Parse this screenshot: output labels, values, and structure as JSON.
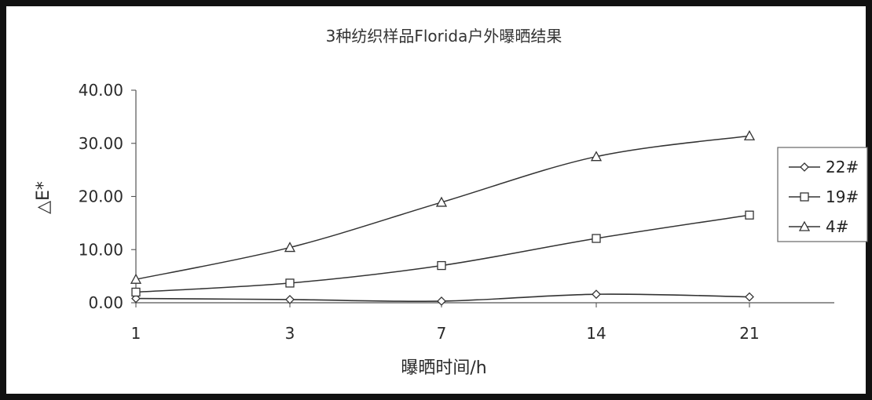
{
  "chart_data": {
    "type": "line",
    "title": "3种纺织样品Florida户外曝晒结果",
    "xlabel": "曝晒时间/h",
    "ylabel": "△E*",
    "categories": [
      "1",
      "3",
      "7",
      "14",
      "21"
    ],
    "ylim": [
      0,
      40
    ],
    "yticks": [
      "0.00",
      "10.00",
      "20.00",
      "30.00",
      "40.00"
    ],
    "grid": false,
    "legend_position": "right",
    "series": [
      {
        "name": "22#",
        "marker": "diamond",
        "values": [
          0.8,
          0.6,
          0.3,
          1.6,
          1.1
        ]
      },
      {
        "name": "19#",
        "marker": "square",
        "values": [
          2.0,
          3.7,
          7.0,
          12.1,
          16.5
        ]
      },
      {
        "name": "4#",
        "marker": "triangle",
        "values": [
          4.4,
          10.4,
          18.9,
          27.5,
          31.4
        ]
      }
    ],
    "colors": {
      "line": "#333333",
      "axis": "#555555",
      "frame": "#111111"
    }
  }
}
